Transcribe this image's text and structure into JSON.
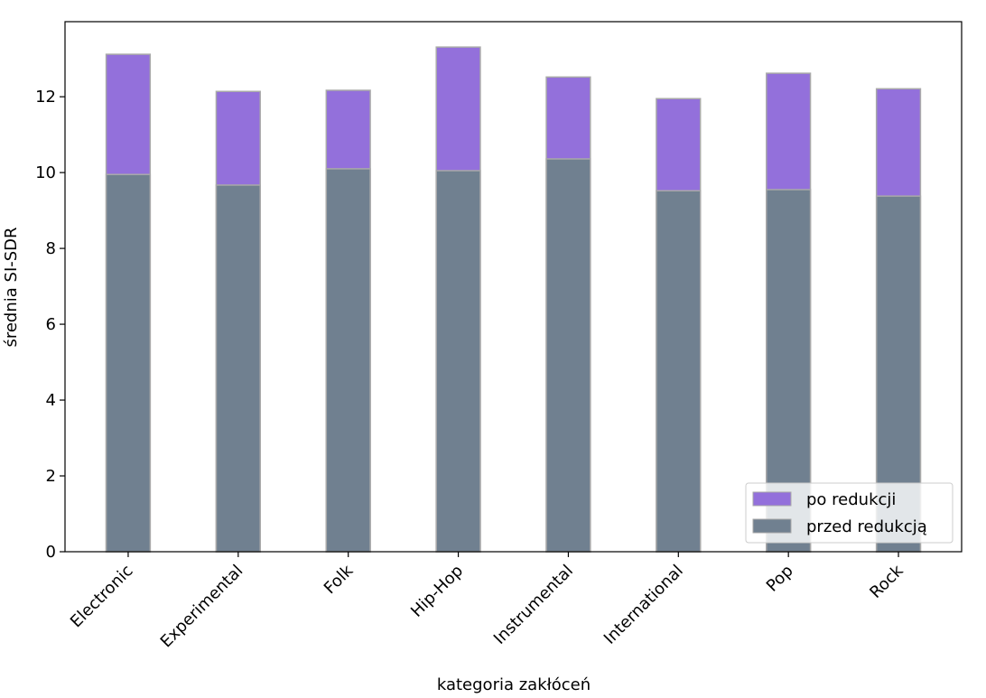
{
  "chart_data": {
    "type": "bar",
    "overlap": true,
    "xlabel": "kategoria zakłóceń",
    "ylabel": "średnia SI-SDR",
    "categories": [
      "Electronic",
      "Experimental",
      "Folk",
      "Hip-Hop",
      "Instrumental",
      "International",
      "Pop",
      "Rock"
    ],
    "series": [
      {
        "name": "po redukcji",
        "color": "#9370db",
        "values": [
          13.12,
          12.14,
          12.17,
          13.31,
          12.52,
          11.95,
          12.62,
          12.21
        ]
      },
      {
        "name": "przed redukcją",
        "color": "#708090",
        "values": [
          9.95,
          9.67,
          10.1,
          10.05,
          10.36,
          9.52,
          9.55,
          9.38
        ]
      }
    ],
    "edgecolor": "#a9a9a9",
    "ylim": [
      0,
      13.98
    ],
    "yticks": [
      0,
      2,
      4,
      6,
      8,
      10,
      12
    ],
    "legend": "lower right"
  }
}
